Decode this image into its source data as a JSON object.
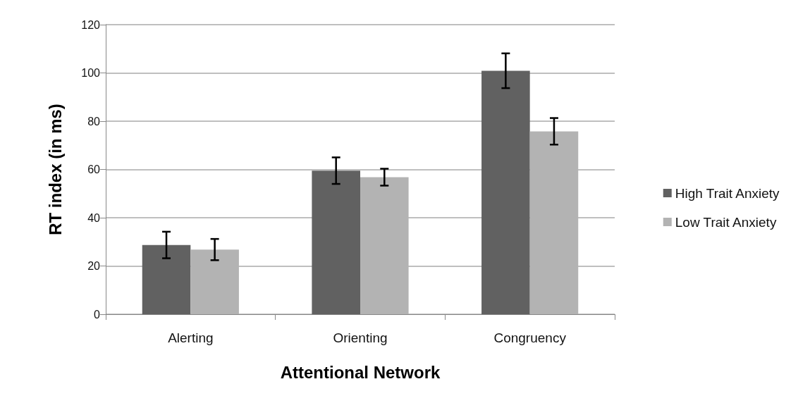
{
  "chart_data": {
    "type": "bar",
    "xlabel": "Attentional Network",
    "ylabel": "RT index (in ms)",
    "categories": [
      "Alerting",
      "Orienting",
      "Congruency"
    ],
    "series": [
      {
        "name": "High Trait Anxiety",
        "color": "#616161",
        "values": [
          28.7,
          59.5,
          100.9
        ],
        "errors": [
          5.5,
          5.5,
          7.2
        ]
      },
      {
        "name": "Low Trait Anxiety",
        "color": "#b3b3b3",
        "values": [
          26.8,
          56.8,
          75.8
        ],
        "errors": [
          4.4,
          3.5,
          5.5
        ]
      }
    ],
    "ylim": [
      0,
      120
    ],
    "yticks": [
      0,
      20,
      40,
      60,
      80,
      100,
      120
    ],
    "grid": "y",
    "legend": "right"
  }
}
